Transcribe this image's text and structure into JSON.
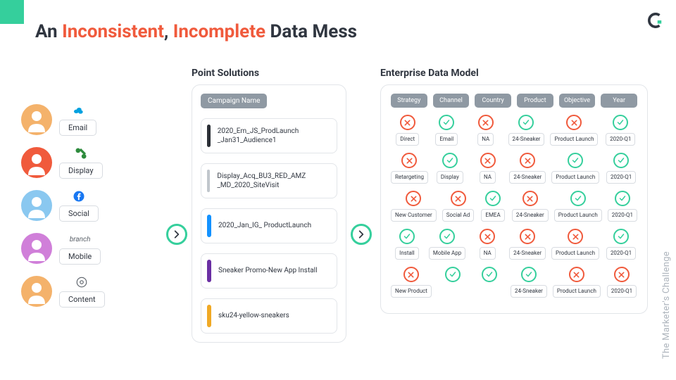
{
  "colors": {
    "accent_green": "#35cf9c",
    "accent_red": "#f05a3c",
    "header_pill": "#8f99a3",
    "text": "#303640",
    "border": "#e2e5e9"
  },
  "deco_square_color": "#35cf9c",
  "title": {
    "pre": "An ",
    "word1": "Inconsistent",
    "mid": ", ",
    "word2": "Incomplete",
    "post": " Data Mess"
  },
  "side_label": "The Marketer's Challenge",
  "personas": [
    {
      "avatar_bg": "#f4b26b",
      "icon": "salesforce",
      "label": "Email"
    },
    {
      "avatar_bg": "#f05a3c",
      "icon": "dv360",
      "label": "Display"
    },
    {
      "avatar_bg": "#8ac8f0",
      "icon": "facebook",
      "label": "Social"
    },
    {
      "avatar_bg": "#d07fd9",
      "icon": "branch",
      "label": "Mobile"
    },
    {
      "avatar_bg": "#f4b26b",
      "icon": "circle",
      "label": "Content"
    }
  ],
  "point_solutions": {
    "title": "Point Solutions",
    "header": "Campaign Name",
    "rows": [
      {
        "bar": "#2b2f36",
        "text": "2020_Em_JS_ProdLaunch _Jan31_Audience1"
      },
      {
        "bar": "#c0c6cc",
        "text": "Display_Acq_BU3_RED_AMZ _MD_2020_SiteVisit"
      },
      {
        "bar": "#1392ff",
        "text": "2020_Jan_IG_ ProductLaunch"
      },
      {
        "bar": "#6a2fa3",
        "text": "Sneaker Promo-New App Install"
      },
      {
        "bar": "#f0a925",
        "text": "sku24-yellow-sneakers"
      }
    ]
  },
  "edm": {
    "title": "Enterprise Data Model",
    "headers": [
      "Strategy",
      "Channel",
      "Country",
      "Product",
      "Objective",
      "Year"
    ],
    "rows": [
      [
        {
          "ok": false,
          "label": "Direct"
        },
        {
          "ok": true,
          "label": "Email"
        },
        {
          "ok": false,
          "label": "NA"
        },
        {
          "ok": true,
          "label": "24-Sneaker"
        },
        {
          "ok": false,
          "label": "Product Launch"
        },
        {
          "ok": true,
          "label": "2020-Q1"
        }
      ],
      [
        {
          "ok": false,
          "label": "Retargeting"
        },
        {
          "ok": true,
          "label": "Display"
        },
        {
          "ok": false,
          "label": "NA"
        },
        {
          "ok": false,
          "label": "24-Sneaker"
        },
        {
          "ok": true,
          "label": "Product Launch"
        },
        {
          "ok": true,
          "label": "2020-Q1"
        }
      ],
      [
        {
          "ok": false,
          "label": "New Customer"
        },
        {
          "ok": false,
          "label": "Social Ad"
        },
        {
          "ok": true,
          "label": "EMEA"
        },
        {
          "ok": false,
          "label": "24-Sneaker"
        },
        {
          "ok": true,
          "label": "Product Launch"
        },
        {
          "ok": true,
          "label": "2020-Q1"
        }
      ],
      [
        {
          "ok": true,
          "label": "Install"
        },
        {
          "ok": true,
          "label": "Mobile App"
        },
        {
          "ok": false,
          "label": "NA"
        },
        {
          "ok": false,
          "label": "24-Sneaker"
        },
        {
          "ok": false,
          "label": "Product Launch"
        },
        {
          "ok": true,
          "label": "2020-Q1"
        }
      ],
      [
        {
          "ok": false,
          "label": "New Product"
        },
        {
          "ok": true,
          "label": ""
        },
        {
          "ok": true,
          "label": ""
        },
        {
          "ok": true,
          "label": "24-Sneaker"
        },
        {
          "ok": false,
          "label": "Product Launch"
        },
        {
          "ok": false,
          "label": "2020-Q1"
        }
      ]
    ]
  }
}
